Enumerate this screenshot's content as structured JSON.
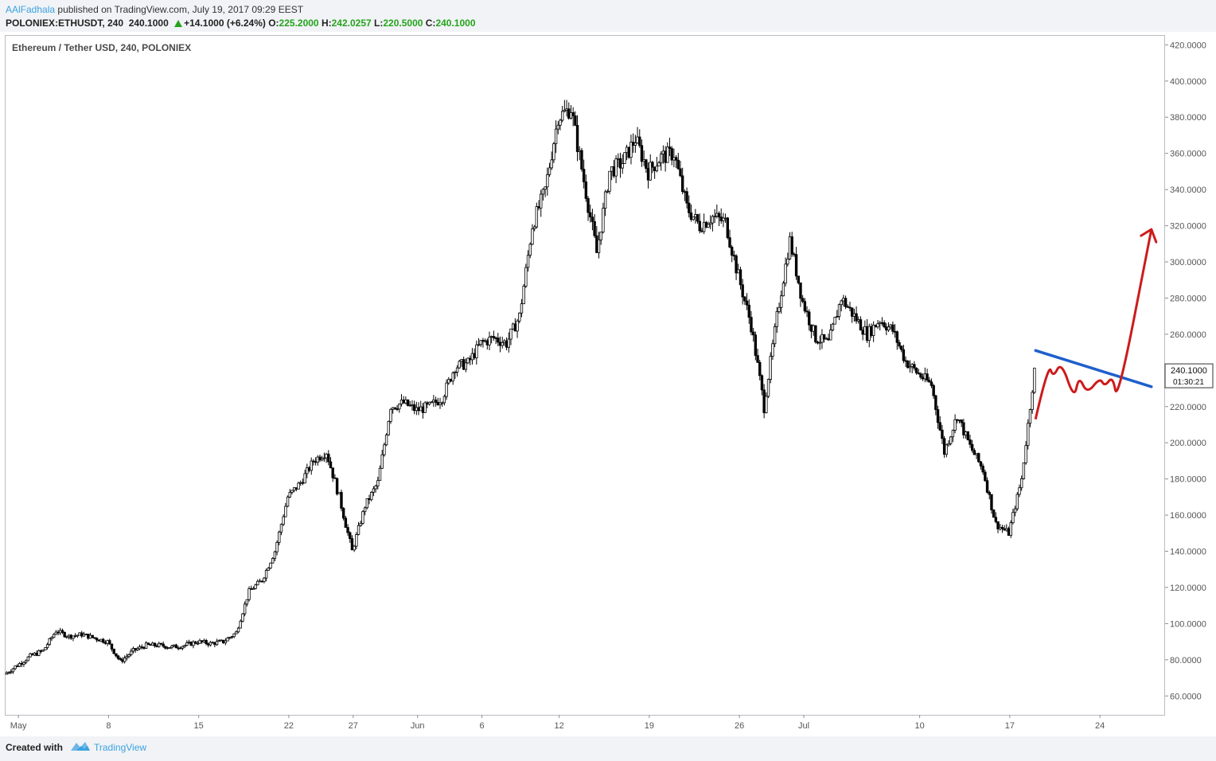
{
  "header": {
    "author": "AAlFadhala",
    "published_text": "published on TradingView.com, July 19, 2017 09:29 EEST",
    "symbol": "POLONIEX:ETHUSDT, 240",
    "last": "240.1000",
    "change": "+14.1000 (+6.24%)",
    "o_label": "O:",
    "o_value": "225.2000",
    "h_label": "H:",
    "h_value": "242.0257",
    "l_label": "L:",
    "l_value": "220.5000",
    "c_label": "C:",
    "c_value": "240.1000"
  },
  "footer": {
    "created_with": "Created with",
    "brand": "TradingView"
  },
  "chart_data": {
    "type": "candlestick",
    "title": "Ethereum / Tether USD, 240, POLONIEX",
    "ylim": [
      50,
      425
    ],
    "x_range": [
      "2017-04-30",
      "2017-07-29"
    ],
    "y_ticks": [
      "420.0000",
      "400.0000",
      "380.0000",
      "360.0000",
      "340.0000",
      "320.0000",
      "300.0000",
      "280.0000",
      "260.0000",
      "240.0000",
      "220.0000",
      "200.0000",
      "180.0000",
      "160.0000",
      "140.0000",
      "120.0000",
      "100.0000",
      "80.0000",
      "60.0000"
    ],
    "x_ticks": [
      {
        "label": "May",
        "date": "2017-05-01"
      },
      {
        "label": "8",
        "date": "2017-05-08"
      },
      {
        "label": "15",
        "date": "2017-05-15"
      },
      {
        "label": "22",
        "date": "2017-05-22"
      },
      {
        "label": "27",
        "date": "2017-05-27"
      },
      {
        "label": "Jun",
        "date": "2017-06-01"
      },
      {
        "label": "6",
        "date": "2017-06-06"
      },
      {
        "label": "12",
        "date": "2017-06-12"
      },
      {
        "label": "19",
        "date": "2017-06-19"
      },
      {
        "label": "26",
        "date": "2017-06-26"
      },
      {
        "label": "Jul",
        "date": "2017-07-01"
      },
      {
        "label": "10",
        "date": "2017-07-10"
      },
      {
        "label": "17",
        "date": "2017-07-17"
      },
      {
        "label": "24",
        "date": "2017-07-24"
      }
    ],
    "price_line": {
      "value": 240.1,
      "label": "240.1000",
      "countdown": "01:30:21"
    },
    "series": [
      {
        "date": "2017-04-30",
        "close": 72
      },
      {
        "date": "2017-05-01",
        "close": 77
      },
      {
        "date": "2017-05-02",
        "close": 82
      },
      {
        "date": "2017-05-03",
        "close": 85
      },
      {
        "date": "2017-05-04",
        "close": 96
      },
      {
        "date": "2017-05-05",
        "close": 93
      },
      {
        "date": "2017-05-06",
        "close": 94
      },
      {
        "date": "2017-05-07",
        "close": 92
      },
      {
        "date": "2017-05-08",
        "close": 90
      },
      {
        "date": "2017-05-09",
        "close": 79
      },
      {
        "date": "2017-05-10",
        "close": 85
      },
      {
        "date": "2017-05-11",
        "close": 88
      },
      {
        "date": "2017-05-12",
        "close": 88
      },
      {
        "date": "2017-05-13",
        "close": 87
      },
      {
        "date": "2017-05-14",
        "close": 88
      },
      {
        "date": "2017-05-15",
        "close": 90
      },
      {
        "date": "2017-05-16",
        "close": 89
      },
      {
        "date": "2017-05-17",
        "close": 90
      },
      {
        "date": "2017-05-18",
        "close": 95
      },
      {
        "date": "2017-05-19",
        "close": 118
      },
      {
        "date": "2017-05-20",
        "close": 124
      },
      {
        "date": "2017-05-21",
        "close": 140
      },
      {
        "date": "2017-05-22",
        "close": 170
      },
      {
        "date": "2017-05-23",
        "close": 178
      },
      {
        "date": "2017-05-24",
        "close": 190
      },
      {
        "date": "2017-05-25",
        "close": 195
      },
      {
        "date": "2017-05-26",
        "close": 170
      },
      {
        "date": "2017-05-27",
        "close": 140
      },
      {
        "date": "2017-05-28",
        "close": 165
      },
      {
        "date": "2017-05-29",
        "close": 178
      },
      {
        "date": "2017-05-30",
        "close": 220
      },
      {
        "date": "2017-05-31",
        "close": 222
      },
      {
        "date": "2017-06-01",
        "close": 218
      },
      {
        "date": "2017-06-02",
        "close": 220
      },
      {
        "date": "2017-06-03",
        "close": 225
      },
      {
        "date": "2017-06-04",
        "close": 242
      },
      {
        "date": "2017-06-05",
        "close": 244
      },
      {
        "date": "2017-06-06",
        "close": 255
      },
      {
        "date": "2017-06-07",
        "close": 258
      },
      {
        "date": "2017-06-08",
        "close": 255
      },
      {
        "date": "2017-06-09",
        "close": 270
      },
      {
        "date": "2017-06-10",
        "close": 320
      },
      {
        "date": "2017-06-11",
        "close": 340
      },
      {
        "date": "2017-06-12",
        "close": 380
      },
      {
        "date": "2017-06-13",
        "close": 385
      },
      {
        "date": "2017-06-14",
        "close": 345
      },
      {
        "date": "2017-06-15",
        "close": 305
      },
      {
        "date": "2017-06-16",
        "close": 350
      },
      {
        "date": "2017-06-17",
        "close": 355
      },
      {
        "date": "2017-06-18",
        "close": 368
      },
      {
        "date": "2017-06-19",
        "close": 350
      },
      {
        "date": "2017-06-20",
        "close": 358
      },
      {
        "date": "2017-06-21",
        "close": 360
      },
      {
        "date": "2017-06-22",
        "close": 330
      },
      {
        "date": "2017-06-23",
        "close": 320
      },
      {
        "date": "2017-06-24",
        "close": 325
      },
      {
        "date": "2017-06-25",
        "close": 322
      },
      {
        "date": "2017-06-26",
        "close": 292
      },
      {
        "date": "2017-06-27",
        "close": 265
      },
      {
        "date": "2017-06-28",
        "close": 220
      },
      {
        "date": "2017-06-29",
        "close": 270
      },
      {
        "date": "2017-06-30",
        "close": 312
      },
      {
        "date": "2017-07-01",
        "close": 278
      },
      {
        "date": "2017-07-02",
        "close": 258
      },
      {
        "date": "2017-07-03",
        "close": 255
      },
      {
        "date": "2017-07-04",
        "close": 280
      },
      {
        "date": "2017-07-05",
        "close": 270
      },
      {
        "date": "2017-07-06",
        "close": 260
      },
      {
        "date": "2017-07-07",
        "close": 268
      },
      {
        "date": "2017-07-08",
        "close": 262
      },
      {
        "date": "2017-07-09",
        "close": 245
      },
      {
        "date": "2017-07-10",
        "close": 238
      },
      {
        "date": "2017-07-11",
        "close": 232
      },
      {
        "date": "2017-07-12",
        "close": 195
      },
      {
        "date": "2017-07-13",
        "close": 215
      },
      {
        "date": "2017-07-14",
        "close": 198
      },
      {
        "date": "2017-07-15",
        "close": 185
      },
      {
        "date": "2017-07-16",
        "close": 155
      },
      {
        "date": "2017-07-17",
        "close": 150
      },
      {
        "date": "2017-07-18",
        "close": 180
      },
      {
        "date": "2017-07-19",
        "close": 240
      }
    ],
    "annotations": {
      "trendline": [
        {
          "date": "2017-07-19",
          "price": 251
        },
        {
          "date": "2017-07-28",
          "price": 231
        }
      ],
      "projection_path": [
        {
          "date": "2017-07-19",
          "price": 213
        },
        {
          "date": "2017-07-20",
          "price": 244
        },
        {
          "date": "2017-07-20",
          "price": 236
        },
        {
          "date": "2017-07-21",
          "price": 245
        },
        {
          "date": "2017-07-22",
          "price": 224
        },
        {
          "date": "2017-07-22",
          "price": 237
        },
        {
          "date": "2017-07-23",
          "price": 227
        },
        {
          "date": "2017-07-24",
          "price": 236
        },
        {
          "date": "2017-07-24",
          "price": 231
        },
        {
          "date": "2017-07-25",
          "price": 237
        },
        {
          "date": "2017-07-25",
          "price": 222
        },
        {
          "date": "2017-07-28",
          "price": 318
        }
      ],
      "trendline_color": "#1f5fcc",
      "projection_color": "#cc1b1b"
    }
  }
}
